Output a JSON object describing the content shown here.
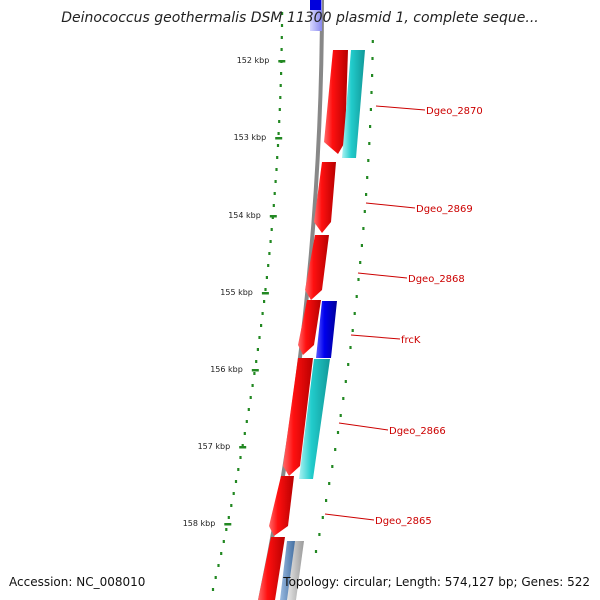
{
  "title": "Deinococcus geothermalis DSM 11300 plasmid 1, complete seque...",
  "footer": {
    "accession": "Accession: NC_008010",
    "summary": "Topology: circular; Length: 574,127 bp; Genes: 522"
  },
  "colors": {
    "forward_gene": "#ff0000",
    "blue_gene": "#0000ee",
    "cyan_gene": "#22cccc",
    "label": "#cc0000",
    "ruler": "#228822",
    "backbone": "#777777"
  },
  "ticks": [
    "152 kbp",
    "153 kbp",
    "154 kbp",
    "155 kbp",
    "156 kbp",
    "157 kbp",
    "158 kbp"
  ],
  "genes": [
    {
      "label": "Dgeo_2870"
    },
    {
      "label": "Dgeo_2869"
    },
    {
      "label": "Dgeo_2868"
    },
    {
      "label": "frcK"
    },
    {
      "label": "Dgeo_2866"
    },
    {
      "label": "Dgeo_2865"
    }
  ]
}
